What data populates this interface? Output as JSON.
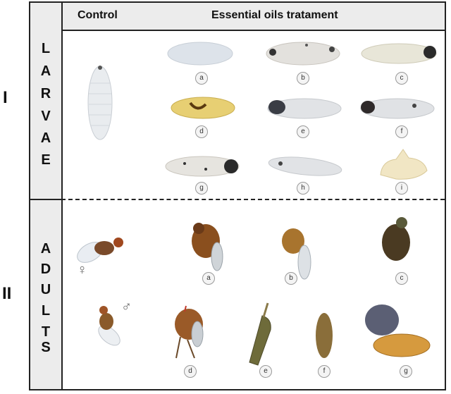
{
  "header": {
    "control": "Control",
    "treatment": "Essential oils tratament"
  },
  "sections": [
    {
      "roman": "I",
      "letters": [
        "L",
        "A",
        "R",
        "V",
        "A",
        "E"
      ]
    },
    {
      "roman": "II",
      "letters": [
        "A",
        "D",
        "U",
        "L",
        "T",
        "S"
      ]
    }
  ],
  "larvae_labels": [
    "a",
    "b",
    "c",
    "d",
    "e",
    "f",
    "g",
    "h",
    "i"
  ],
  "adult_labels": [
    "a",
    "b",
    "c",
    "d",
    "e",
    "f",
    "g"
  ],
  "symbols": {
    "female": "♀",
    "male": "♂"
  }
}
